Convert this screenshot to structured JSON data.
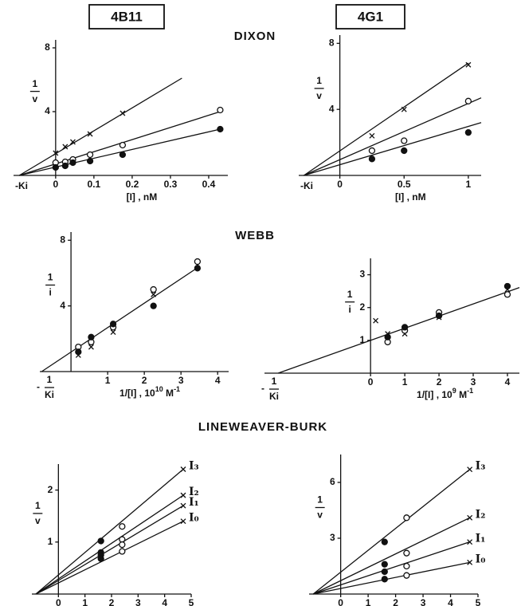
{
  "headers": [
    "4B11",
    "4G1"
  ],
  "section_titles": [
    "DIXON",
    "WEBB",
    "LINEWEAVER-BURK"
  ],
  "chart_data": [
    {
      "type": "scatter",
      "x_label": [
        {
          "text": "[I] , nM"
        }
      ],
      "y_label": {
        "num": "1",
        "den": "v"
      },
      "intercept_label": "-Ki",
      "xlim": [
        -0.11,
        0.45
      ],
      "ylim": [
        0,
        8.5
      ],
      "xticks": [
        0,
        0.1,
        0.2,
        0.3,
        0.4
      ],
      "yticks": [
        4,
        8
      ],
      "series": [
        {
          "marker": "x",
          "x": [
            0,
            0.025,
            0.045,
            0.09,
            0.175
          ],
          "y": [
            1.4,
            1.8,
            2.1,
            2.6,
            3.9
          ],
          "fit_x": [
            -0.095,
            0.33
          ],
          "fit_y": [
            0,
            6.1
          ]
        },
        {
          "marker": "open",
          "x": [
            0,
            0.025,
            0.045,
            0.09,
            0.175,
            0.43
          ],
          "y": [
            0.8,
            0.85,
            1.0,
            1.3,
            1.9,
            4.1
          ],
          "fit_x": [
            -0.095,
            0.43
          ],
          "fit_y": [
            0,
            4.0
          ]
        },
        {
          "marker": "filled",
          "x": [
            0,
            0.025,
            0.045,
            0.09,
            0.175,
            0.43
          ],
          "y": [
            0.5,
            0.6,
            0.8,
            0.9,
            1.3,
            2.9
          ],
          "fit_x": [
            -0.095,
            0.43
          ],
          "fit_y": [
            0,
            2.9
          ]
        }
      ]
    },
    {
      "type": "scatter",
      "x_label": [
        {
          "text": "[I] , nM"
        }
      ],
      "y_label": {
        "num": "1",
        "den": "v"
      },
      "intercept_label": "-Ki",
      "xlim": [
        -0.32,
        1.1
      ],
      "ylim": [
        0,
        8.5
      ],
      "xticks": [
        0,
        0.5,
        1
      ],
      "yticks": [
        4,
        8
      ],
      "series": [
        {
          "marker": "x",
          "x": [
            0.25,
            0.5,
            1
          ],
          "y": [
            2.4,
            4.0,
            6.7
          ],
          "fit_x": [
            -0.28,
            1.0
          ],
          "fit_y": [
            0,
            6.8
          ]
        },
        {
          "marker": "open",
          "x": [
            0.25,
            0.5,
            1
          ],
          "y": [
            1.5,
            2.1,
            4.5
          ],
          "fit_x": [
            -0.28,
            1.1
          ],
          "fit_y": [
            0,
            4.7
          ]
        },
        {
          "marker": "filled",
          "x": [
            0.25,
            0.5,
            1
          ],
          "y": [
            1.0,
            1.5,
            2.6
          ],
          "fit_x": [
            -0.28,
            1.1
          ],
          "fit_y": [
            0,
            3.2
          ]
        }
      ]
    },
    {
      "type": "scatter",
      "x_label": [
        {
          "text": "1/[I] , 10"
        },
        {
          "text": "10",
          "sup": true
        },
        {
          "text": " M"
        },
        {
          "text": "-1",
          "sup": true
        }
      ],
      "y_label": {
        "num": "1",
        "den": "i"
      },
      "intercept_label": {
        "sign": "-",
        "num": "1",
        "den": "Ki"
      },
      "xlim": [
        -0.85,
        4.3
      ],
      "ylim": [
        0,
        8.5
      ],
      "xticks": [
        1,
        2,
        3,
        4
      ],
      "yticks": [
        4,
        8
      ],
      "fit_x": [
        -0.8,
        3.5
      ],
      "fit_y": [
        0,
        6.4
      ],
      "series": [
        {
          "marker": "x",
          "x": [
            0.2,
            0.55,
            1.15,
            2.25,
            3.45
          ],
          "y": [
            1.0,
            1.5,
            2.4,
            4.7,
            6.5
          ]
        },
        {
          "marker": "open",
          "x": [
            0.2,
            0.55,
            1.15,
            2.25,
            3.45
          ],
          "y": [
            1.5,
            1.8,
            2.7,
            5.0,
            6.7
          ]
        },
        {
          "marker": "filled",
          "x": [
            0.2,
            0.55,
            1.15,
            2.25,
            3.45
          ],
          "y": [
            1.2,
            2.1,
            2.9,
            4.0,
            6.3
          ]
        }
      ]
    },
    {
      "type": "scatter",
      "x_label": [
        {
          "text": "1/[I] , 10"
        },
        {
          "text": "9",
          "sup": true
        },
        {
          "text": " M"
        },
        {
          "text": "-1",
          "sup": true
        }
      ],
      "y_label": {
        "num": "1",
        "den": "i"
      },
      "intercept_label": {
        "sign": "-",
        "num": "1",
        "den": "Ki"
      },
      "xlim": [
        -3.1,
        4.35
      ],
      "ylim": [
        0,
        3.5
      ],
      "xticks": [
        0,
        1,
        2,
        3,
        4
      ],
      "yticks": [
        1,
        2,
        3
      ],
      "fit_x": [
        -2.7,
        4.35
      ],
      "fit_y": [
        0,
        2.61
      ],
      "series": [
        {
          "marker": "x",
          "x": [
            0.15,
            0.5,
            1,
            2,
            4
          ],
          "y": [
            1.6,
            1.2,
            1.2,
            1.7,
            2.55
          ]
        },
        {
          "marker": "open",
          "x": [
            0.5,
            1,
            2,
            4
          ],
          "y": [
            0.95,
            1.3,
            1.85,
            2.4
          ]
        },
        {
          "marker": "filled",
          "x": [
            0.5,
            1,
            2,
            4
          ],
          "y": [
            1.1,
            1.4,
            1.75,
            2.65
          ]
        }
      ]
    },
    {
      "type": "scatter",
      "x_label": [
        {
          "text": "1/[S] , μM"
        },
        {
          "text": "-1",
          "sup": true
        }
      ],
      "y_label": {
        "num": "1",
        "den": "v"
      },
      "xlim": [
        -1,
        5
      ],
      "ylim": [
        0,
        2.5
      ],
      "xticks": [
        0,
        1,
        2,
        3,
        4,
        5
      ],
      "yticks": [
        1,
        2
      ],
      "markers": [
        "filled",
        "open",
        "x"
      ],
      "series": [
        {
          "name": "I₃",
          "x": [
            1.6,
            2.4,
            4.7
          ],
          "y": [
            1.02,
            1.3,
            2.4
          ],
          "fit_x": [
            -0.85,
            4.7
          ],
          "fit_y": [
            0,
            2.4
          ]
        },
        {
          "name": "I₂",
          "x": [
            1.6,
            2.4,
            4.7
          ],
          "y": [
            0.8,
            1.05,
            1.9
          ],
          "fit_x": [
            -0.85,
            4.7
          ],
          "fit_y": [
            0,
            1.9
          ]
        },
        {
          "name": "I₁",
          "x": [
            1.6,
            2.4,
            4.7
          ],
          "y": [
            0.75,
            0.95,
            1.7
          ],
          "fit_x": [
            -0.85,
            4.7
          ],
          "fit_y": [
            0,
            1.7
          ]
        },
        {
          "name": "I₀",
          "x": [
            1.6,
            2.4,
            4.7
          ],
          "y": [
            0.68,
            0.82,
            1.4
          ],
          "fit_x": [
            -0.85,
            4.7
          ],
          "fit_y": [
            0,
            1.4
          ]
        }
      ]
    },
    {
      "type": "scatter",
      "x_label": [
        {
          "text": "1/[S] , μM"
        },
        {
          "text": "-1",
          "sup": true
        }
      ],
      "y_label": {
        "num": "1",
        "den": "v"
      },
      "xlim": [
        -1.15,
        5
      ],
      "ylim": [
        0,
        7.5
      ],
      "xticks": [
        0,
        1,
        2,
        3,
        4,
        5
      ],
      "yticks": [
        3,
        6
      ],
      "markers": [
        "filled",
        "open",
        "x"
      ],
      "series": [
        {
          "name": "I₃",
          "x": [
            1.6,
            2.4,
            4.7
          ],
          "y": [
            2.8,
            4.1,
            6.7
          ],
          "fit_x": [
            -1.0,
            4.7
          ],
          "fit_y": [
            0,
            6.7
          ]
        },
        {
          "name": "I₂",
          "x": [
            1.6,
            2.4,
            4.7
          ],
          "y": [
            1.6,
            2.2,
            4.1
          ],
          "fit_x": [
            -1.0,
            4.7
          ],
          "fit_y": [
            0,
            4.1
          ]
        },
        {
          "name": "I₁",
          "x": [
            1.6,
            2.4,
            4.7
          ],
          "y": [
            1.2,
            1.5,
            2.8
          ],
          "fit_x": [
            -1.0,
            4.7
          ],
          "fit_y": [
            0,
            2.8
          ]
        },
        {
          "name": "I₀",
          "x": [
            1.6,
            2.4,
            4.7
          ],
          "y": [
            0.8,
            1.0,
            1.7
          ],
          "fit_x": [
            -1.0,
            4.7
          ],
          "fit_y": [
            0,
            1.7
          ]
        }
      ]
    }
  ]
}
